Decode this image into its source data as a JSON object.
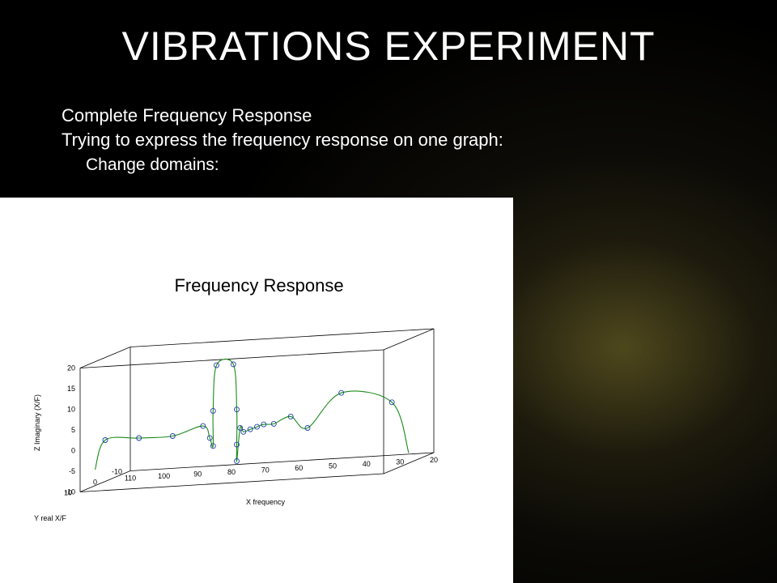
{
  "slide": {
    "title": "VIBRATIONS EXPERIMENT",
    "line1": "Complete Frequency Response",
    "line2": "Trying to express the frequency response on one graph:",
    "line3": "Change domains:"
  },
  "chart_data": {
    "type": "line",
    "projection": "3d",
    "title": "Frequency Response",
    "xlabel": "X frequency",
    "ylabel": "Y real X/F",
    "zlabel": "Z Imaginary (X/F)",
    "x_ticks": [
      "110",
      "100",
      "90",
      "80",
      "70",
      "60",
      "50",
      "40",
      "30",
      "20"
    ],
    "y_ticks": [
      "-10",
      "0",
      "10"
    ],
    "z_ticks": [
      "20",
      "15",
      "10",
      "5",
      "0",
      "-5",
      "-10"
    ],
    "xlim": [
      20,
      110
    ],
    "ylim": [
      -10,
      10
    ],
    "zlim": [
      -10,
      20
    ],
    "grid": false,
    "colors": {
      "curve": "#1a8a1a",
      "markers": "#1f3fa8",
      "box": "#000000"
    },
    "series": [
      {
        "marker": "circle",
        "points": [
          {
            "x": 110,
            "y": 0,
            "z": 0
          },
          {
            "x": 100,
            "y": 0,
            "z": 0
          },
          {
            "x": 90,
            "y": 0,
            "z": 0
          },
          {
            "x": 81,
            "y": 0,
            "z": 2
          },
          {
            "x": 79,
            "y": 0,
            "z": -1
          },
          {
            "x": 78,
            "y": 0,
            "z": -3
          },
          {
            "x": 78,
            "y": 0,
            "z": 5.5
          },
          {
            "x": 77,
            "y": 0,
            "z": 16.5
          },
          {
            "x": 72,
            "y": 0,
            "z": 16.5
          },
          {
            "x": 71,
            "y": 0,
            "z": 5.5
          },
          {
            "x": 71,
            "y": 0,
            "z": -3
          },
          {
            "x": 71,
            "y": 0,
            "z": -7
          },
          {
            "x": 70,
            "y": 0,
            "z": 1
          },
          {
            "x": 69,
            "y": 0,
            "z": 0
          },
          {
            "x": 67,
            "y": 0,
            "z": 0.5
          },
          {
            "x": 65,
            "y": 0,
            "z": 1
          },
          {
            "x": 63,
            "y": 0,
            "z": 1.5
          },
          {
            "x": 60,
            "y": 0,
            "z": 1.5
          },
          {
            "x": 55,
            "y": 0,
            "z": 3
          },
          {
            "x": 50,
            "y": 0,
            "z": 0
          },
          {
            "x": 40,
            "y": 0,
            "z": 8
          },
          {
            "x": 25,
            "y": 0,
            "z": 5
          }
        ]
      }
    ]
  }
}
